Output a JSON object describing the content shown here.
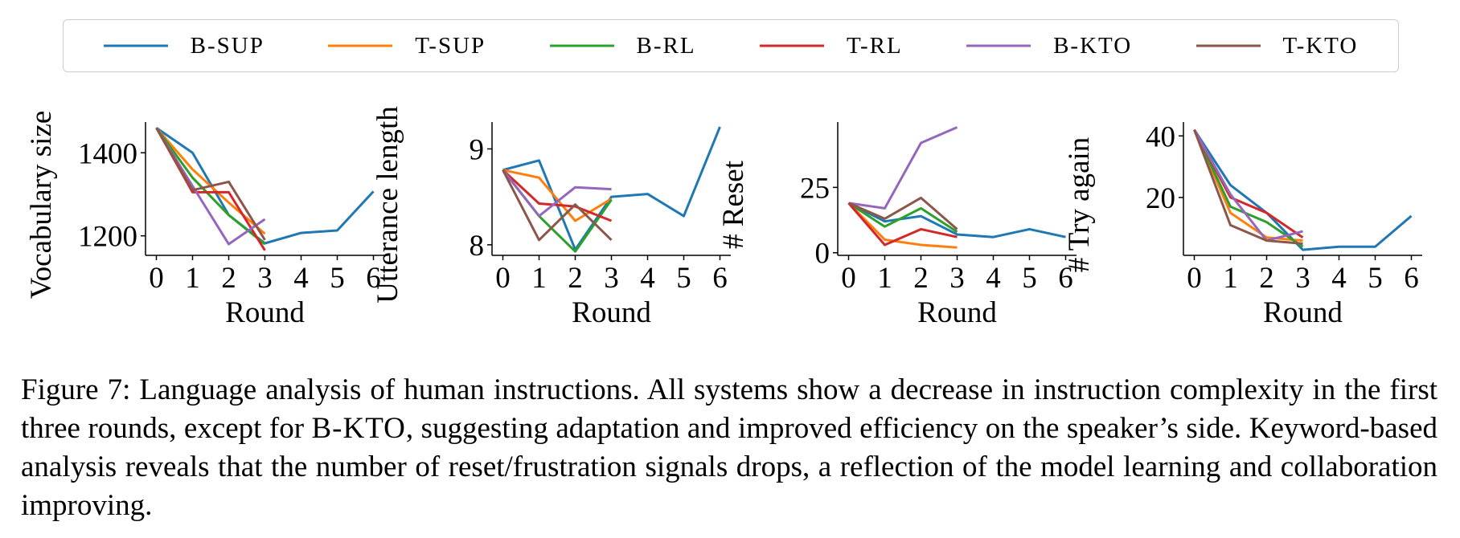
{
  "chart_data": [
    {
      "type": "line",
      "ylabel": "Vocabulary size",
      "xlabel": "Round",
      "x": [
        0,
        1,
        2,
        3,
        4,
        5,
        6
      ],
      "xlim": [
        -0.3,
        6.3
      ],
      "xticks": [
        0,
        1,
        2,
        3,
        4,
        5,
        6
      ],
      "ylim": [
        1153,
        1474
      ],
      "yticks": [
        1200,
        1400
      ],
      "series": [
        {
          "name": "B-SUP",
          "color": "#1f77b4",
          "values": [
            1460,
            1400,
            1250,
            1182,
            1207,
            1213,
            1307
          ]
        },
        {
          "name": "T-SUP",
          "color": "#ff7f0e",
          "values": [
            1460,
            1360,
            1280,
            1205,
            null,
            null,
            null
          ]
        },
        {
          "name": "B-RL",
          "color": "#2ca02c",
          "values": [
            1460,
            1340,
            1250,
            1180,
            null,
            null,
            null
          ]
        },
        {
          "name": "T-RL",
          "color": "#d62728",
          "values": [
            1460,
            1305,
            1305,
            1165,
            null,
            null,
            null
          ]
        },
        {
          "name": "B-KTO",
          "color": "#9467bd",
          "values": [
            1460,
            1320,
            1180,
            1240,
            null,
            null,
            null
          ]
        },
        {
          "name": "T-KTO",
          "color": "#8c564b",
          "values": [
            1460,
            1310,
            1330,
            1190,
            null,
            null,
            null
          ]
        }
      ]
    },
    {
      "type": "line",
      "ylabel": "Utterance length",
      "xlabel": "Round",
      "x": [
        0,
        1,
        2,
        3,
        4,
        5,
        6
      ],
      "xlim": [
        -0.3,
        6.3
      ],
      "xticks": [
        0,
        1,
        2,
        3,
        4,
        5,
        6
      ],
      "ylim": [
        7.89,
        9.28
      ],
      "yticks": [
        8,
        9
      ],
      "series": [
        {
          "name": "B-SUP",
          "color": "#1f77b4",
          "values": [
            8.78,
            8.88,
            7.95,
            8.5,
            8.53,
            8.3,
            9.23
          ]
        },
        {
          "name": "T-SUP",
          "color": "#ff7f0e",
          "values": [
            8.78,
            8.7,
            8.25,
            8.48,
            null,
            null,
            null
          ]
        },
        {
          "name": "B-RL",
          "color": "#2ca02c",
          "values": [
            8.78,
            8.3,
            7.93,
            8.47,
            null,
            null,
            null
          ]
        },
        {
          "name": "T-RL",
          "color": "#d62728",
          "values": [
            8.78,
            8.43,
            8.4,
            8.25,
            null,
            null,
            null
          ]
        },
        {
          "name": "B-KTO",
          "color": "#9467bd",
          "values": [
            8.78,
            8.3,
            8.6,
            8.58,
            null,
            null,
            null
          ]
        },
        {
          "name": "T-KTO",
          "color": "#8c564b",
          "values": [
            8.78,
            8.05,
            8.42,
            8.05,
            null,
            null,
            null
          ]
        }
      ]
    },
    {
      "type": "line",
      "ylabel": "# Reset",
      "xlabel": "Round",
      "x": [
        0,
        1,
        2,
        3,
        4,
        5,
        6
      ],
      "xlim": [
        -0.3,
        6.3
      ],
      "xticks": [
        0,
        1,
        2,
        3,
        4,
        5,
        6
      ],
      "ylim": [
        -1,
        50
      ],
      "yticks": [
        0,
        25
      ],
      "series": [
        {
          "name": "B-SUP",
          "color": "#1f77b4",
          "values": [
            19,
            12,
            14,
            7,
            6,
            9,
            6
          ]
        },
        {
          "name": "T-SUP",
          "color": "#ff7f0e",
          "values": [
            19,
            5,
            3,
            2,
            null,
            null,
            null
          ]
        },
        {
          "name": "B-RL",
          "color": "#2ca02c",
          "values": [
            19,
            10,
            17,
            8,
            null,
            null,
            null
          ]
        },
        {
          "name": "T-RL",
          "color": "#d62728",
          "values": [
            19,
            3,
            9,
            6,
            null,
            null,
            null
          ]
        },
        {
          "name": "B-KTO",
          "color": "#9467bd",
          "values": [
            19,
            17,
            42,
            48,
            null,
            null,
            null
          ]
        },
        {
          "name": "T-KTO",
          "color": "#8c564b",
          "values": [
            19,
            13,
            21,
            9,
            null,
            null,
            null
          ]
        }
      ]
    },
    {
      "type": "line",
      "ylabel": "# Try again",
      "xlabel": "Round",
      "x": [
        0,
        1,
        2,
        3,
        4,
        5,
        6
      ],
      "xlim": [
        -0.3,
        6.3
      ],
      "xticks": [
        0,
        1,
        2,
        3,
        4,
        5,
        6
      ],
      "ylim": [
        1.2,
        44.5
      ],
      "yticks": [
        20,
        40
      ],
      "series": [
        {
          "name": "B-SUP",
          "color": "#1f77b4",
          "values": [
            42,
            24,
            15,
            3,
            4,
            4,
            14
          ]
        },
        {
          "name": "T-SUP",
          "color": "#ff7f0e",
          "values": [
            42,
            15,
            7,
            6,
            null,
            null,
            null
          ]
        },
        {
          "name": "B-RL",
          "color": "#2ca02c",
          "values": [
            42,
            17,
            12,
            4,
            null,
            null,
            null
          ]
        },
        {
          "name": "T-RL",
          "color": "#d62728",
          "values": [
            42,
            20,
            15,
            7,
            null,
            null,
            null
          ]
        },
        {
          "name": "B-KTO",
          "color": "#9467bd",
          "values": [
            42,
            21,
            6,
            9,
            null,
            null,
            null
          ]
        },
        {
          "name": "T-KTO",
          "color": "#8c564b",
          "values": [
            42,
            11,
            6,
            5,
            null,
            null,
            null
          ]
        }
      ]
    }
  ],
  "caption": {
    "parts": [
      "Figure 7: Language analysis of human instructions.  All systems show a decrease in instruction complexity in the first three rounds, except for ",
      "B-KTO",
      ", suggesting adaptation and improved efficiency on the speaker’s side. Keyword-based analysis reveals that the number of reset/frustration signals drops, a reflection of the model learning and collaboration improving."
    ]
  }
}
